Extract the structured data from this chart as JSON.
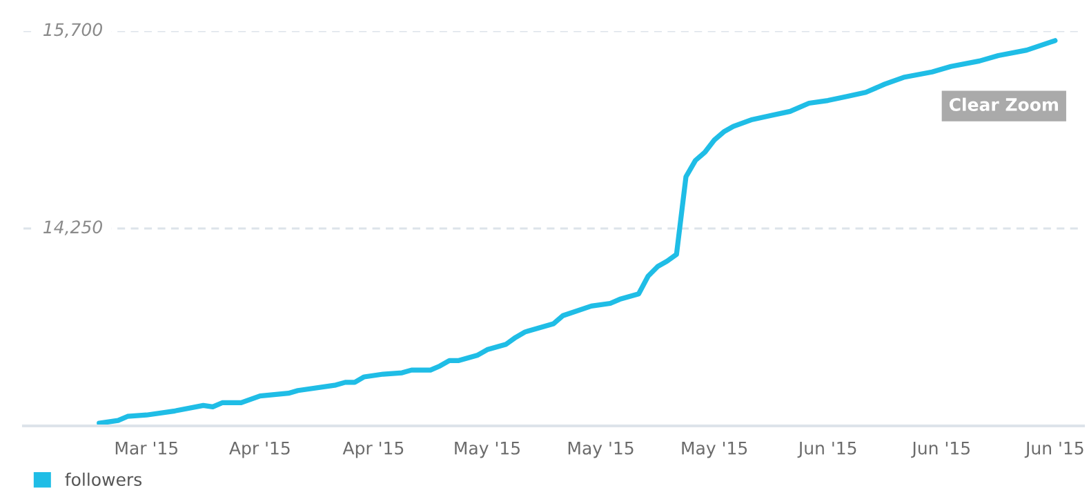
{
  "chart_data": {
    "type": "line",
    "x": [
      "2015-03-21",
      "2015-03-23",
      "2015-03-24",
      "2015-03-26",
      "2015-03-29",
      "2015-04-01",
      "2015-04-02",
      "2015-04-03",
      "2015-04-05",
      "2015-04-07",
      "2015-04-10",
      "2015-04-11",
      "2015-04-15",
      "2015-04-16",
      "2015-04-17",
      "2015-04-18",
      "2015-04-20",
      "2015-04-22",
      "2015-04-23",
      "2015-04-25",
      "2015-04-26",
      "2015-04-27",
      "2015-04-28",
      "2015-04-30",
      "2015-05-01",
      "2015-05-03",
      "2015-05-04",
      "2015-05-05",
      "2015-05-08",
      "2015-05-09",
      "2015-05-12",
      "2015-05-14",
      "2015-05-15",
      "2015-05-17",
      "2015-05-18",
      "2015-05-19",
      "2015-05-20",
      "2015-05-21",
      "2015-05-22",
      "2015-05-23",
      "2015-05-24",
      "2015-05-25",
      "2015-05-26",
      "2015-05-27",
      "2015-05-29",
      "2015-05-31",
      "2015-06-02",
      "2015-06-04",
      "2015-06-06",
      "2015-06-08",
      "2015-06-10",
      "2015-06-12",
      "2015-06-14",
      "2015-06-17",
      "2015-06-19",
      "2015-06-22",
      "2015-06-24",
      "2015-06-27",
      "2015-06-30"
    ],
    "series": [
      {
        "name": "followers",
        "color": "#1fbde6",
        "values": [
          12820,
          12840,
          12870,
          12880,
          12910,
          12950,
          12940,
          12970,
          12970,
          13020,
          13040,
          13060,
          13100,
          13120,
          13120,
          13160,
          13180,
          13190,
          13210,
          13210,
          13240,
          13280,
          13280,
          13320,
          13360,
          13400,
          13450,
          13490,
          13550,
          13610,
          13680,
          13700,
          13730,
          13770,
          13900,
          13970,
          14010,
          14060,
          14630,
          14750,
          14810,
          14900,
          14960,
          15000,
          15050,
          15080,
          15110,
          15170,
          15190,
          15220,
          15250,
          15310,
          15360,
          15400,
          15440,
          15480,
          15520,
          15560,
          15630
        ]
      }
    ],
    "xlim": [
      "2015-03-13",
      "2015-07-03"
    ],
    "xticks": [
      {
        "value": "2015-03-26",
        "label": "Mar '15"
      },
      {
        "value": "2015-04-07",
        "label": "Apr '15"
      },
      {
        "value": "2015-04-19",
        "label": "Apr '15"
      },
      {
        "value": "2015-05-01",
        "label": "May '15"
      },
      {
        "value": "2015-05-13",
        "label": "May '15"
      },
      {
        "value": "2015-05-25",
        "label": "May '15"
      },
      {
        "value": "2015-06-06",
        "label": "Jun '15"
      },
      {
        "value": "2015-06-18",
        "label": "Jun '15"
      },
      {
        "value": "2015-06-30",
        "label": "Jun '15"
      }
    ],
    "ylim": [
      12800,
      15700
    ],
    "yticks": [
      {
        "value": 14250,
        "label": "14,250"
      },
      {
        "value": 15700,
        "label": "15,700"
      }
    ],
    "grid": "y",
    "legend": "bottom left",
    "marker": "none",
    "line_style": "solid",
    "annotations": [
      "Clear Zoom"
    ]
  }
}
